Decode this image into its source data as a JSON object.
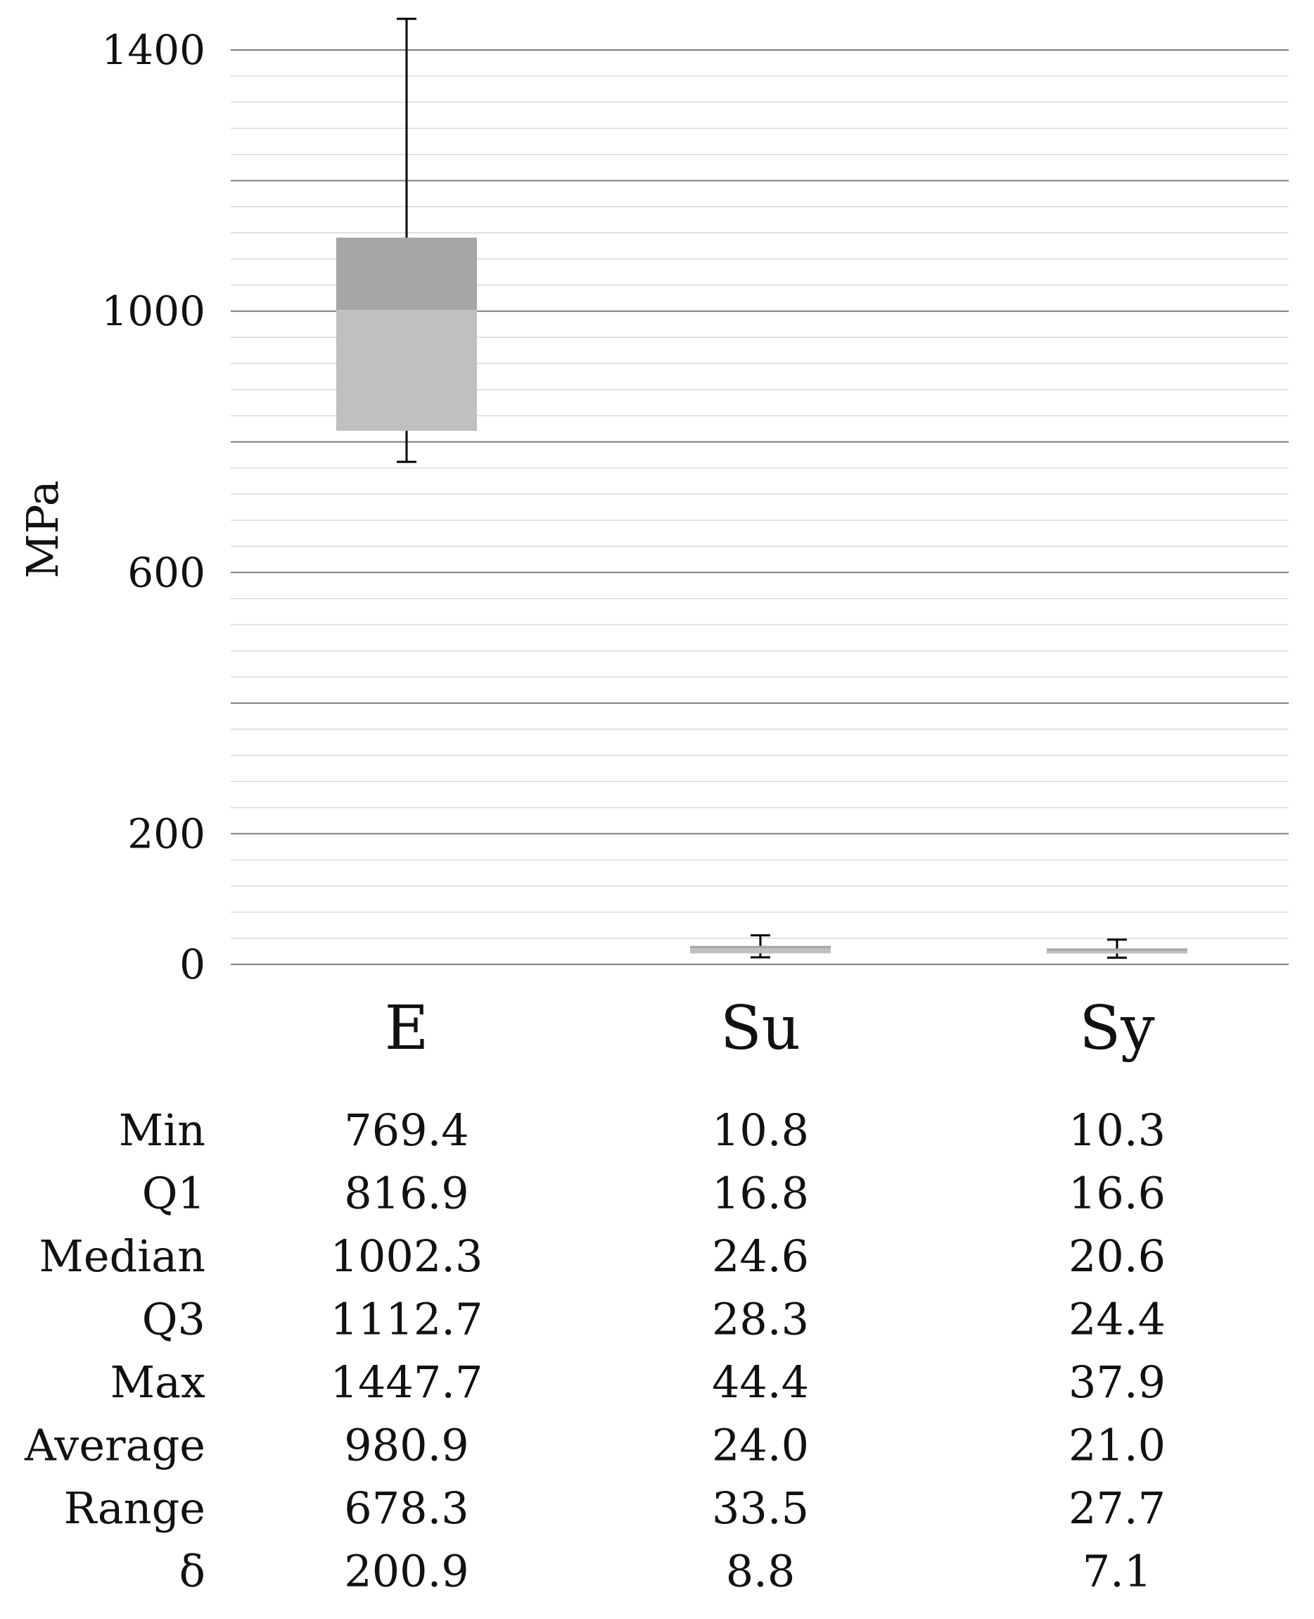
{
  "chart_data": {
    "type": "boxplot",
    "ylabel": "MPa",
    "ylim": [
      0,
      1400
    ],
    "y_major_step": 200,
    "y_minor_step": 40,
    "y_tick_labels_shown": [
      "1400",
      "1000",
      "600",
      "200",
      "0"
    ],
    "grid": true,
    "colors": {
      "box_lower": "#c1c0c1",
      "box_upper": "#a6a6a6",
      "whisker": "#000000",
      "major_grid": "#7f7f7f",
      "minor_grid": "#d9d9d9"
    },
    "categories": [
      "E",
      "Su",
      "Sy"
    ],
    "stats": [
      {
        "name": "E",
        "min": 769.4,
        "q1": 816.9,
        "median": 1002.3,
        "q3": 1112.7,
        "max": 1447.7
      },
      {
        "name": "Su",
        "min": 10.8,
        "q1": 16.8,
        "median": 24.6,
        "q3": 28.3,
        "max": 44.4
      },
      {
        "name": "Sy",
        "min": 10.3,
        "q1": 16.6,
        "median": 20.6,
        "q3": 24.4,
        "max": 37.9
      }
    ],
    "table": {
      "row_labels": [
        "Min",
        "Q1",
        "Median",
        "Q3",
        "Max",
        "Average",
        "Range",
        "δ"
      ],
      "columns": [
        {
          "header": "E",
          "values": [
            "769.4",
            "816.9",
            "1002.3",
            "1112.7",
            "1447.7",
            "980.9",
            "678.3",
            "200.9"
          ]
        },
        {
          "header": "Su",
          "values": [
            "10.8",
            "16.8",
            "24.6",
            "28.3",
            "44.4",
            "24.0",
            "33.5",
            "8.8"
          ]
        },
        {
          "header": "Sy",
          "values": [
            "10.3",
            "16.6",
            "20.6",
            "24.4",
            "37.9",
            "21.0",
            "27.7",
            "7.1"
          ]
        }
      ]
    }
  }
}
